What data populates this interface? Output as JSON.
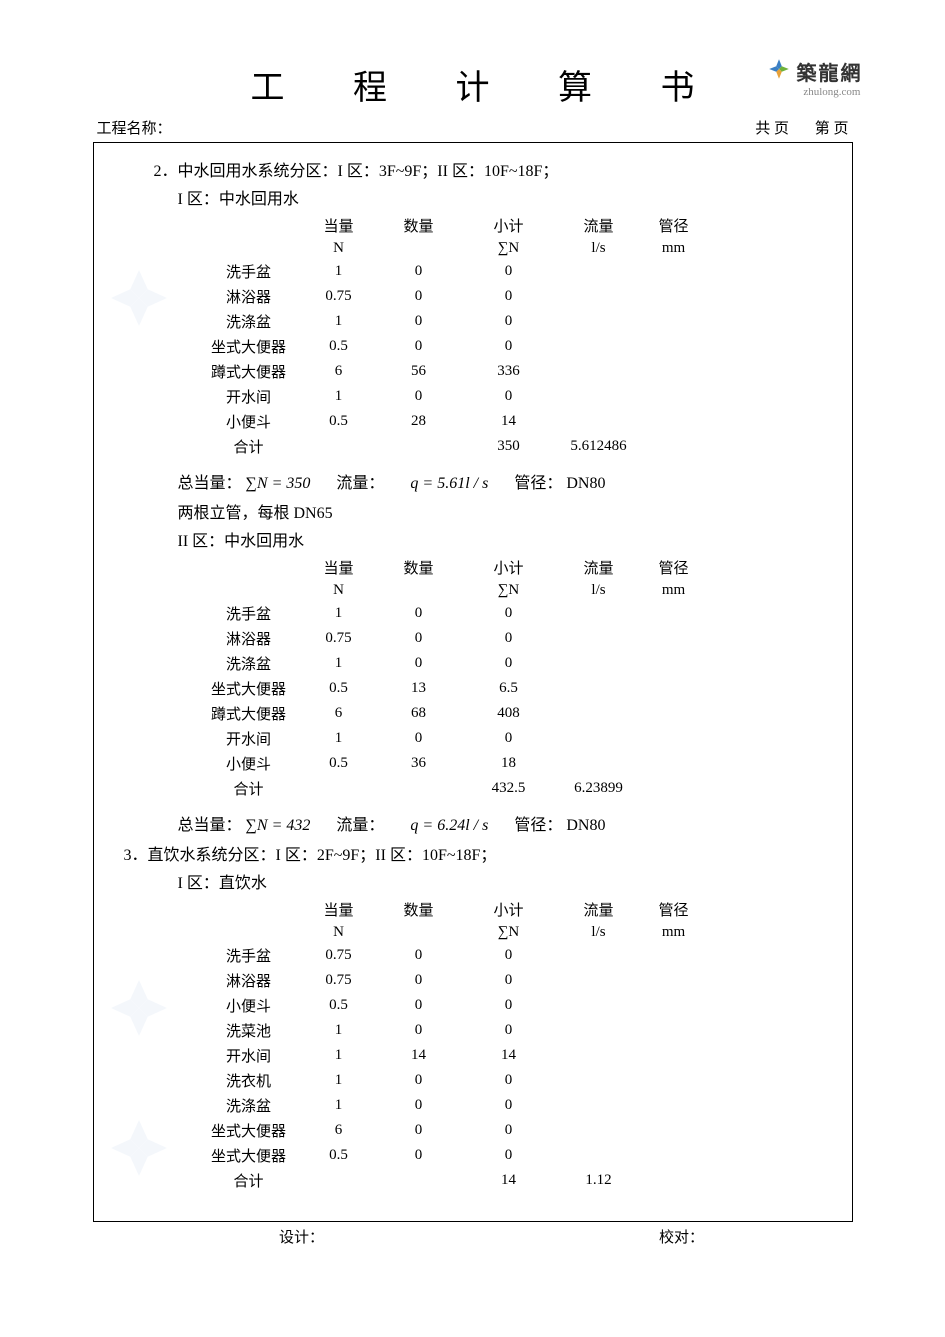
{
  "title": "工 程 计 算 书",
  "logo": {
    "text": "築龍網",
    "sub": "zhulong.com"
  },
  "meta": {
    "project_label": "工程名称：",
    "total_pages_label": "共   页",
    "page_no_label": "第   页"
  },
  "section2": {
    "heading": "2．中水回用水系统分区：I 区：3F~9F；II 区：10F~18F；",
    "zone1_title": "I 区：中水回用水",
    "zone2_title": "II 区：中水回用水",
    "columns": {
      "n": "当量",
      "n2": "N",
      "qty": "数量",
      "sub": "小计",
      "sub2": "∑N",
      "flow": "流量",
      "flow2": "l/s",
      "dia": "管径",
      "dia2": "mm"
    },
    "zone1_rows": [
      {
        "name": "洗手盆",
        "n": "1",
        "qty": "0",
        "sub": "0"
      },
      {
        "name": "淋浴器",
        "n": "0.75",
        "qty": "0",
        "sub": "0"
      },
      {
        "name": "洗涤盆",
        "n": "1",
        "qty": "0",
        "sub": "0"
      },
      {
        "name": "坐式大便器",
        "n": "0.5",
        "qty": "0",
        "sub": "0"
      },
      {
        "name": "蹲式大便器",
        "n": "6",
        "qty": "56",
        "sub": "336"
      },
      {
        "name": "开水间",
        "n": "1",
        "qty": "0",
        "sub": "0"
      },
      {
        "name": "小便斗",
        "n": "0.5",
        "qty": "28",
        "sub": "14"
      }
    ],
    "zone1_total": {
      "name": "合计",
      "sub": "350",
      "flow": "5.612486"
    },
    "zone1_summary": {
      "pre": "总当量：",
      "eq": "∑N = 350",
      "flow_label": "流量：",
      "flow_eq": "q = 5.61l / s",
      "dia_label": "管径：",
      "dia": "DN80"
    },
    "zone1_note": "两根立管，每根 DN65",
    "zone2_rows": [
      {
        "name": "洗手盆",
        "n": "1",
        "qty": "0",
        "sub": "0"
      },
      {
        "name": "淋浴器",
        "n": "0.75",
        "qty": "0",
        "sub": "0"
      },
      {
        "name": "洗涤盆",
        "n": "1",
        "qty": "0",
        "sub": "0"
      },
      {
        "name": "坐式大便器",
        "n": "0.5",
        "qty": "13",
        "sub": "6.5"
      },
      {
        "name": "蹲式大便器",
        "n": "6",
        "qty": "68",
        "sub": "408"
      },
      {
        "name": "开水间",
        "n": "1",
        "qty": "0",
        "sub": "0"
      },
      {
        "name": "小便斗",
        "n": "0.5",
        "qty": "36",
        "sub": "18"
      }
    ],
    "zone2_total": {
      "name": "合计",
      "sub": "432.5",
      "flow": "6.23899"
    },
    "zone2_summary": {
      "pre": "总当量：",
      "eq": "∑N = 432",
      "flow_label": "流量：",
      "flow_eq": "q = 6.24l / s",
      "dia_label": "管径：",
      "dia": "DN80"
    }
  },
  "section3": {
    "heading": "3．直饮水系统分区：I 区：2F~9F；II 区：10F~18F；",
    "zone1_title": "I 区：直饮水",
    "columns": {
      "n": "当量",
      "n2": "N",
      "qty": "数量",
      "sub": "小计",
      "sub2": "∑N",
      "flow": "流量",
      "flow2": "l/s",
      "dia": "管径",
      "dia2": "mm"
    },
    "zone1_rows": [
      {
        "name": "洗手盆",
        "n": "0.75",
        "qty": "0",
        "sub": "0"
      },
      {
        "name": "淋浴器",
        "n": "0.75",
        "qty": "0",
        "sub": "0"
      },
      {
        "name": "小便斗",
        "n": "0.5",
        "qty": "0",
        "sub": "0"
      },
      {
        "name": "洗菜池",
        "n": "1",
        "qty": "0",
        "sub": "0"
      },
      {
        "name": "开水间",
        "n": "1",
        "qty": "14",
        "sub": "14"
      },
      {
        "name": "洗衣机",
        "n": "1",
        "qty": "0",
        "sub": "0"
      },
      {
        "name": "洗涤盆",
        "n": "1",
        "qty": "0",
        "sub": "0"
      },
      {
        "name": "坐式大便器",
        "n": "6",
        "qty": "0",
        "sub": "0"
      },
      {
        "name": "坐式大便器",
        "n": "0.5",
        "qty": "0",
        "sub": "0"
      }
    ],
    "zone1_total": {
      "name": "合计",
      "sub": "14",
      "flow": "1.12"
    }
  },
  "footer": {
    "design": "设计：",
    "check": "校对："
  },
  "colors": {
    "text": "#000000",
    "bg": "#ffffff",
    "watermark": "#b8cfe8",
    "logo_blue": "#3a7fc4",
    "logo_green": "#6fb23a",
    "logo_orange": "#e8a23a"
  }
}
